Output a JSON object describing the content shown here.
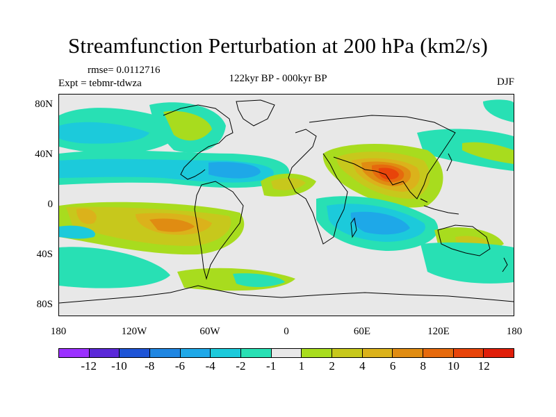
{
  "title": "Streamfunction Perturbation at 200 hPa (km2/s)",
  "rmse_label": "rmse= 0.0112716",
  "expt_label": "Expt = tebmr-tdwza",
  "center_label": "122kyr BP - 000kyr BP",
  "season": "DJF",
  "lat_labels": [
    "80N",
    "40N",
    "0",
    "40S",
    "80S"
  ],
  "lon_labels": [
    "180",
    "120W",
    "60W",
    "0",
    "60E",
    "120E",
    "180"
  ],
  "colorbar": {
    "colors": [
      "#9b30ff",
      "#5a28d8",
      "#1e54d6",
      "#1f86e2",
      "#1ea8e8",
      "#1ccadb",
      "#28e0b4",
      "#e8e8e8",
      "#a8dc1e",
      "#c7c81c",
      "#dbb21b",
      "#e08c12",
      "#e66a0d",
      "#e8440a",
      "#e01e0a"
    ],
    "labels": [
      "-12",
      "-10",
      "-8",
      "-6",
      "-4",
      "-2",
      "-1",
      "1",
      "2",
      "4",
      "6",
      "8",
      "10",
      "12"
    ]
  },
  "colors": {
    "background_field": "#e8e8e8",
    "coast": "#000000"
  }
}
